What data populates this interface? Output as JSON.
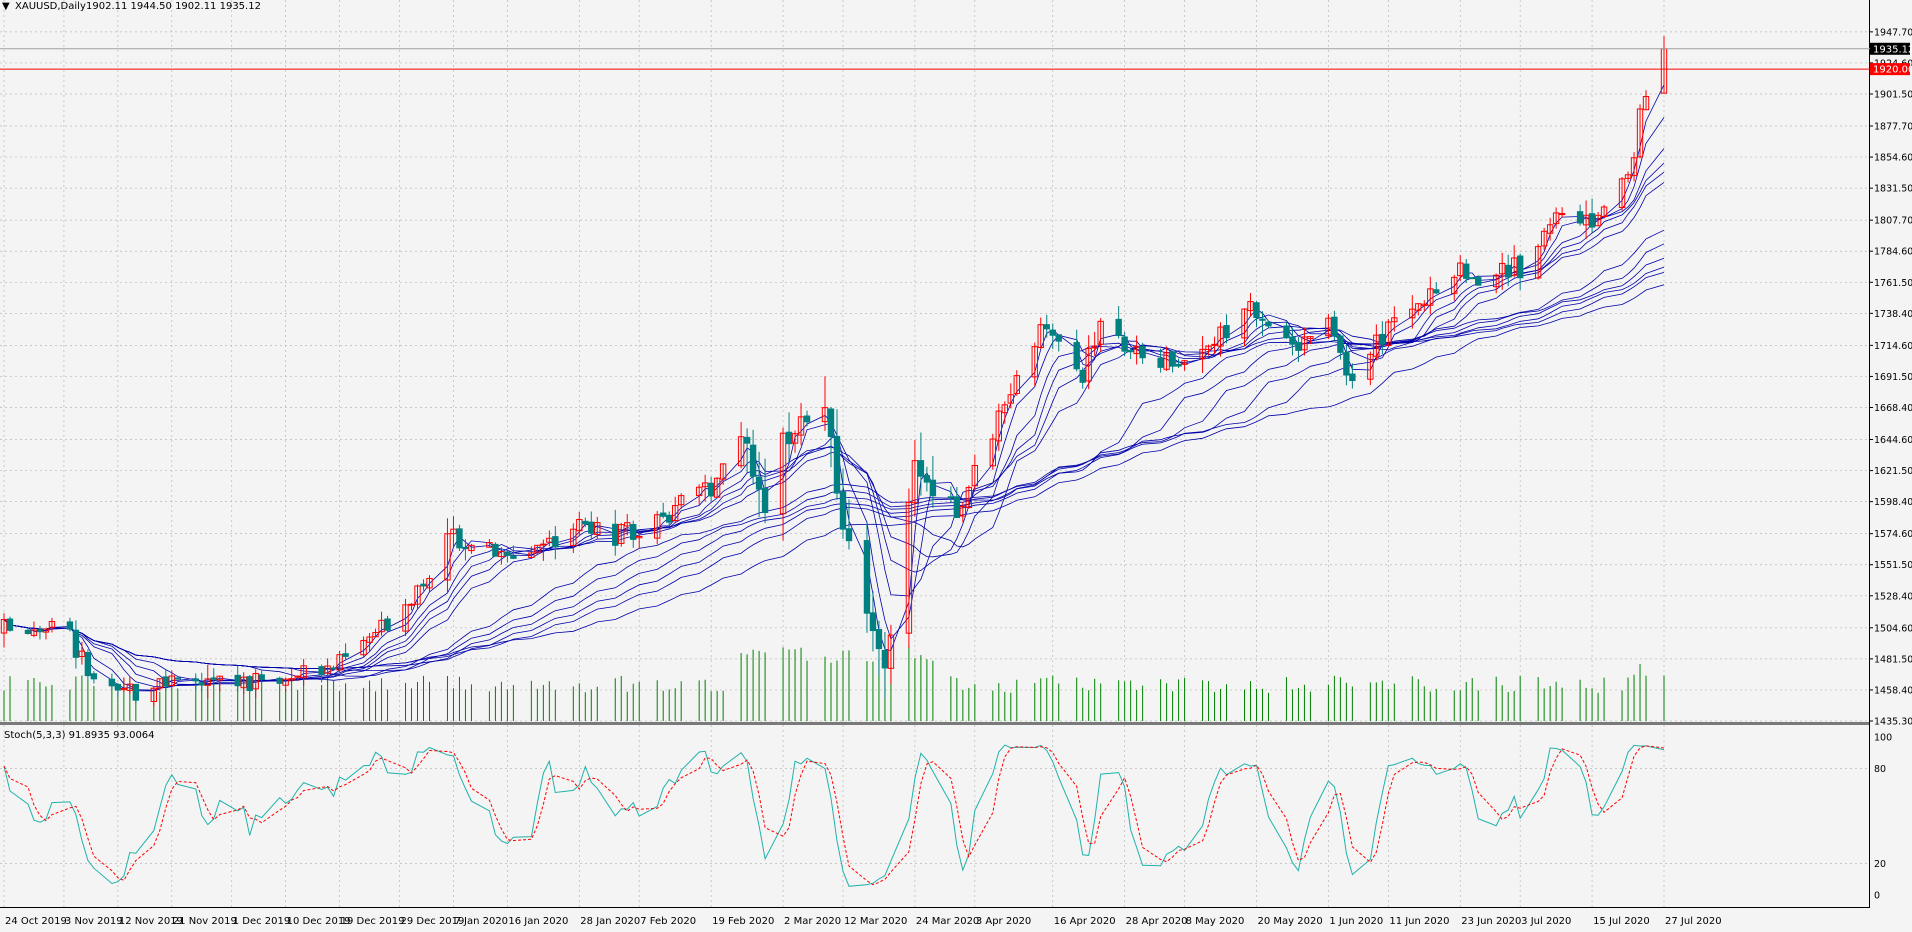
{
  "header": {
    "symbol_label": "XAUUSD,Daily",
    "ohlc_text": "1902.11 1944.50 1902.11 1935.12"
  },
  "colors": {
    "background": "#f4f4f4",
    "grid": "#b8b8b8",
    "bull_candle": "#ff0000",
    "bear_candle": "#008080",
    "ma_line": "#0000aa",
    "volume": "#008000",
    "price_line": "#ff0000",
    "stoch_main": "#20b2aa",
    "stoch_signal": "#ff0000",
    "axis_text": "#000000"
  },
  "price_axis": {
    "ticks": [
      "1947.70",
      "1924.60",
      "1901.50",
      "1877.70",
      "1854.60",
      "1831.50",
      "1807.70",
      "1784.60",
      "1761.50",
      "1738.40",
      "1714.60",
      "1691.50",
      "1668.40",
      "1644.60",
      "1621.50",
      "1598.40",
      "1574.60",
      "1551.50",
      "1528.40",
      "1504.60",
      "1481.50",
      "1458.40",
      "1435.30"
    ],
    "current_price_label": "1935.12",
    "alert_level_label": "1920.00"
  },
  "date_axis": {
    "labels": [
      "24 Oct 2019",
      "3 Nov 2019",
      "12 Nov 2019",
      "21 Nov 2019",
      "1 Dec 2019",
      "10 Dec 2019",
      "19 Dec 2019",
      "29 Dec 2019",
      "7 Jan 2020",
      "16 Jan 2020",
      "28 Jan 2020",
      "7 Feb 2020",
      "19 Feb 2020",
      "2 Mar 2020",
      "12 Mar 2020",
      "24 Mar 2020",
      "3 Apr 2020",
      "16 Apr 2020",
      "28 Apr 2020",
      "8 May 2020",
      "20 May 2020",
      "1 Jun 2020",
      "11 Jun 2020",
      "23 Jun 2020",
      "3 Jul 2020",
      "15 Jul 2020",
      "27 Jul 2020"
    ]
  },
  "indicator": {
    "label": "Stoch(5,3,3) 91.8935 93.0064",
    "levels": [
      "100",
      "80",
      "20",
      "0"
    ]
  },
  "chart_data": {
    "type": "candlestick",
    "symbol": "XAUUSD",
    "timeframe": "Daily",
    "ylim": [
      1435.3,
      1955
    ],
    "current_price": 1935.12,
    "alert_level": 1920.0,
    "last_bar": {
      "open": 1902.11,
      "high": 1944.5,
      "low": 1902.11,
      "close": 1935.12
    },
    "close_path": [
      {
        "d": "24 Oct 2019",
        "c": 1502
      },
      {
        "d": "3 Nov 2019",
        "c": 1509
      },
      {
        "d": "8 Nov 2019",
        "c": 1462
      },
      {
        "d": "12 Nov 2019",
        "c": 1456
      },
      {
        "d": "21 Nov 2019",
        "c": 1464
      },
      {
        "d": "1 Dec 2019",
        "c": 1464
      },
      {
        "d": "10 Dec 2019",
        "c": 1466
      },
      {
        "d": "19 Dec 2019",
        "c": 1478
      },
      {
        "d": "29 Dec 2019",
        "c": 1517
      },
      {
        "d": "7 Jan 2020",
        "c": 1574
      },
      {
        "d": "16 Jan 2020",
        "c": 1556
      },
      {
        "d": "28 Jan 2020",
        "c": 1582
      },
      {
        "d": "7 Feb 2020",
        "c": 1570
      },
      {
        "d": "19 Feb 2020",
        "c": 1612
      },
      {
        "d": "24 Feb 2020",
        "c": 1650
      },
      {
        "d": "28 Feb 2020",
        "c": 1586
      },
      {
        "d": "2 Mar 2020",
        "c": 1640
      },
      {
        "d": "9 Mar 2020",
        "c": 1672
      },
      {
        "d": "12 Mar 2020",
        "c": 1580
      },
      {
        "d": "19 Mar 2020",
        "c": 1475
      },
      {
        "d": "24 Mar 2020",
        "c": 1620
      },
      {
        "d": "1 Apr 2020",
        "c": 1592
      },
      {
        "d": "3 Apr 2020",
        "c": 1620
      },
      {
        "d": "14 Apr 2020",
        "c": 1728
      },
      {
        "d": "16 Apr 2020",
        "c": 1718
      },
      {
        "d": "21 Apr 2020",
        "c": 1690
      },
      {
        "d": "24 Apr 2020",
        "c": 1732
      },
      {
        "d": "28 Apr 2020",
        "c": 1706
      },
      {
        "d": "8 May 2020",
        "c": 1703
      },
      {
        "d": "18 May 2020",
        "c": 1738
      },
      {
        "d": "20 May 2020",
        "c": 1743
      },
      {
        "d": "26 May 2020",
        "c": 1712
      },
      {
        "d": "1 Jun 2020",
        "c": 1738
      },
      {
        "d": "5 Jun 2020",
        "c": 1686
      },
      {
        "d": "11 Jun 2020",
        "c": 1730
      },
      {
        "d": "23 Jun 2020",
        "c": 1765
      },
      {
        "d": "3 Jul 2020",
        "c": 1774
      },
      {
        "d": "8 Jul 2020",
        "c": 1808
      },
      {
        "d": "15 Jul 2020",
        "c": 1806
      },
      {
        "d": "21 Jul 2020",
        "c": 1842
      },
      {
        "d": "24 Jul 2020",
        "c": 1902
      },
      {
        "d": "27 Jul 2020",
        "c": 1935
      }
    ],
    "moving_averages": {
      "count": 12,
      "color": "#0000aa"
    },
    "volume": {
      "color": "#008000"
    },
    "stochastic": {
      "k_period": 5,
      "d_period": 3,
      "slowing": 3,
      "main": 91.8935,
      "signal": 93.0064,
      "ylim": [
        0,
        100
      ]
    }
  }
}
